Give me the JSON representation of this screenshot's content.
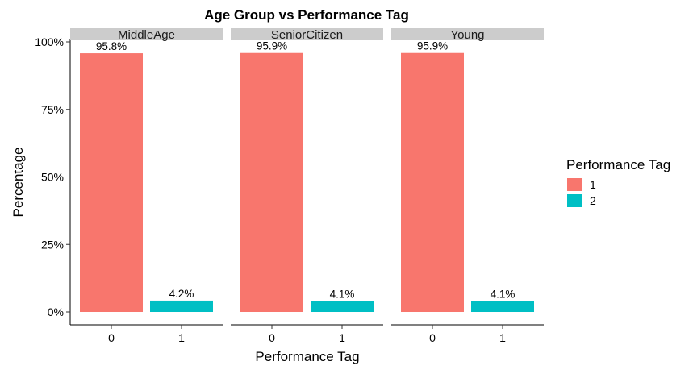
{
  "chart_data": {
    "type": "bar",
    "title": "Age Group vs Performance Tag",
    "xlabel": "Performance Tag",
    "ylabel": "Percentage",
    "ylim": [
      0,
      100
    ],
    "y_ticks": [
      0,
      25,
      50,
      75,
      100
    ],
    "y_tick_labels": [
      "0%",
      "25%",
      "50%",
      "75%",
      "100%"
    ],
    "categories": [
      "0",
      "1"
    ],
    "legend": {
      "title": "Performance Tag",
      "position": "right",
      "entries": [
        {
          "label": "1",
          "color": "#F8766D"
        },
        {
          "label": "2",
          "color": "#00BFC4"
        }
      ]
    },
    "panels": [
      {
        "name": "MiddleAge",
        "values": [
          95.8,
          4.2
        ],
        "labels": [
          "95.8%",
          "4.2%"
        ]
      },
      {
        "name": "SeniorCitizen",
        "values": [
          95.9,
          4.1
        ],
        "labels": [
          "95.9%",
          "4.1%"
        ]
      },
      {
        "name": "Young",
        "values": [
          95.9,
          4.1
        ],
        "labels": [
          "95.9%",
          "4.1%"
        ]
      }
    ],
    "grid": false
  }
}
